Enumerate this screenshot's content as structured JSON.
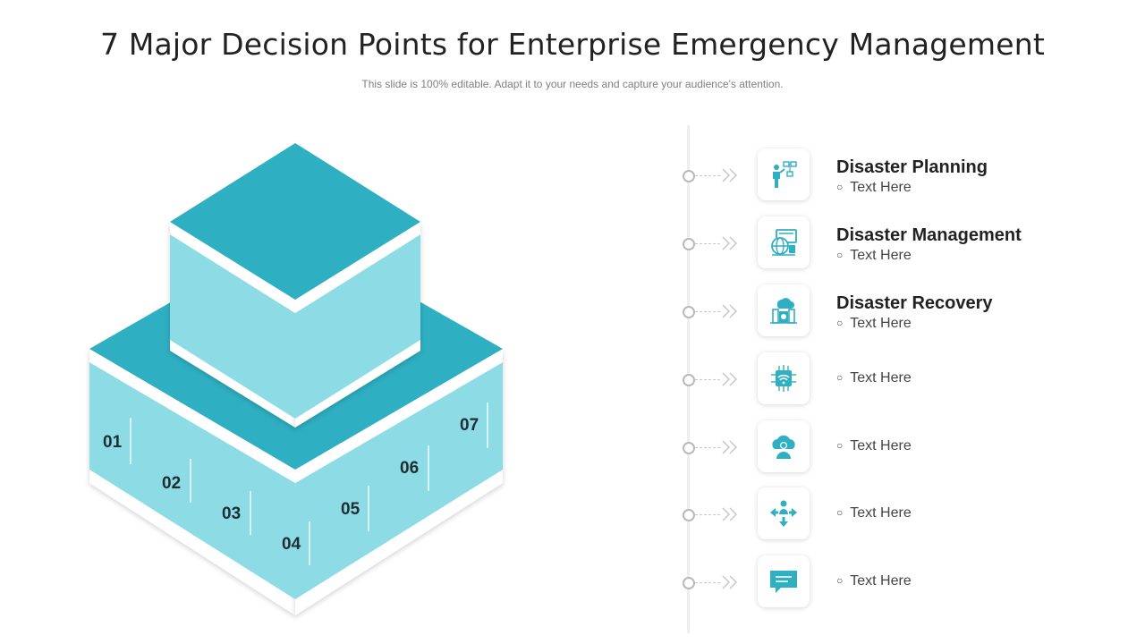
{
  "title": "7 Major Decision Points for Enterprise Emergency Management",
  "subtitle": "This slide is 100% editable. Adapt it to your needs and capture your audience's attention.",
  "colors": {
    "accent_dark": "#2eafc2",
    "accent_light": "#8ddce5",
    "text_dark": "#222222"
  },
  "numbers": [
    "01",
    "02",
    "03",
    "04",
    "05",
    "06",
    "07"
  ],
  "items": [
    {
      "icon": "planning-person-flowchart-icon",
      "title": "Disaster Planning",
      "text": "Text Here"
    },
    {
      "icon": "globe-monitor-network-icon",
      "title": "Disaster Management",
      "text": "Text Here"
    },
    {
      "icon": "cloud-building-recovery-icon",
      "title": "Disaster Recovery",
      "text": "Text Here"
    },
    {
      "icon": "wifi-circuit-icon",
      "title": "",
      "text": "Text Here"
    },
    {
      "icon": "cloud-user-icon",
      "title": "",
      "text": "Text Here"
    },
    {
      "icon": "person-arrows-icon",
      "title": "",
      "text": "Text Here"
    },
    {
      "icon": "chat-message-icon",
      "title": "",
      "text": "Text Here"
    }
  ]
}
